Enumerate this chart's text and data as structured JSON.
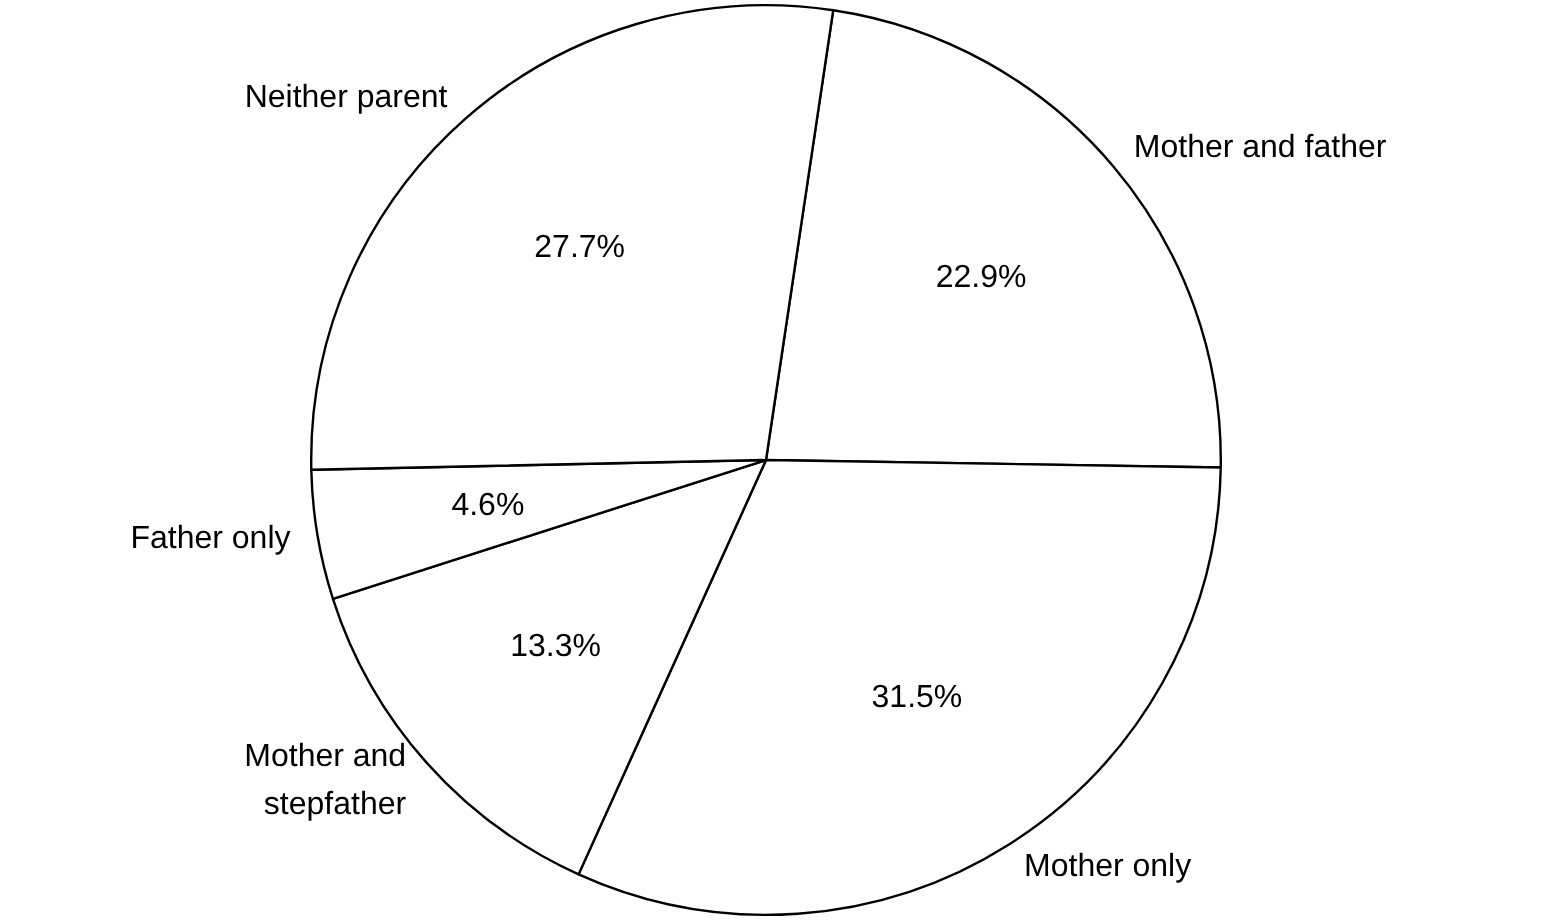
{
  "chart_data": {
    "type": "pie",
    "categories": [
      "Mother and father",
      "Mother only",
      "Mother and stepfather",
      "Father only",
      "Neither parent"
    ],
    "values": [
      22.9,
      31.5,
      13.3,
      4.6,
      27.7
    ],
    "colors": [
      "#ffffff",
      "#ffffff",
      "#ffffff",
      "#ffffff",
      "#ffffff"
    ],
    "value_labels": [
      "22.9%",
      "31.5%",
      "13.3%",
      "4.6%",
      "27.7%"
    ],
    "legend": false
  }
}
